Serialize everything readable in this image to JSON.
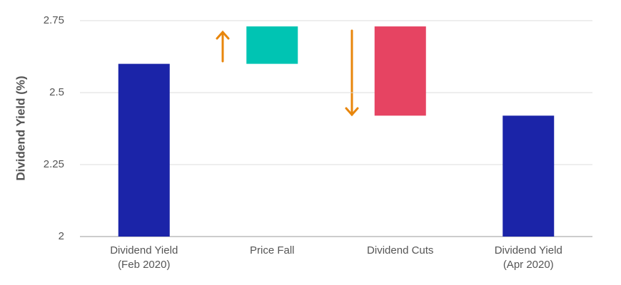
{
  "chart_data": {
    "type": "waterfall",
    "y_label": "Dividend Yield (%)",
    "categories": [
      "Dividend Yield\n(Feb 2020)",
      "Price Fall",
      "Dividend Cuts",
      "Dividend Yield\n(Apr 2020)"
    ],
    "values": [
      2.6,
      0.13,
      -0.31,
      2.42
    ],
    "measure": [
      "absolute",
      "relative",
      "relative",
      "absolute"
    ],
    "colors": [
      "#1b24a8",
      "#00c4b3",
      "#e64462",
      "#1b24a8"
    ],
    "ylim": [
      2,
      2.75
    ],
    "yticks": [
      2,
      2.25,
      2.5,
      2.75
    ],
    "grid": true
  }
}
